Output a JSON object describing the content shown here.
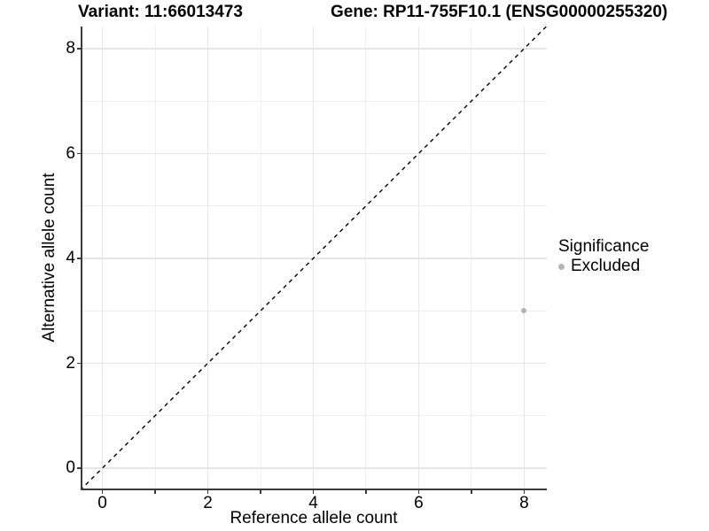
{
  "header": {
    "variant_title": "Variant: 11:66013473",
    "gene_title": "Gene: RP11-755F10.1 (ENSG00000255320)"
  },
  "chart_data": {
    "type": "scatter",
    "title_left": "Variant: 11:66013473",
    "title_right": "Gene: RP11-755F10.1 (ENSG00000255320)",
    "xlabel": "Reference allele count",
    "ylabel": "Alternative allele count",
    "xlim": [
      -0.38,
      8.43
    ],
    "ylim": [
      -0.39,
      8.42
    ],
    "x_major_ticks": [
      0,
      2,
      4,
      6,
      8
    ],
    "x_minor_ticks": [
      1,
      3,
      5,
      7
    ],
    "x_tick_labels": [
      "0",
      "2",
      "4",
      "6",
      "8"
    ],
    "y_major_ticks": [
      0,
      2,
      4,
      6,
      8
    ],
    "y_tick_labels": [
      "0",
      "2",
      "4",
      "6",
      "8"
    ],
    "grid": {
      "major": [
        0,
        2,
        4,
        6,
        8
      ],
      "minor": [
        1,
        3,
        5,
        7
      ]
    },
    "reference_line": {
      "type": "identity",
      "style": "dashed",
      "color": "#000000"
    },
    "series": [
      {
        "name": "Excluded",
        "color": "#b4b4b4",
        "points": [
          {
            "x": 8,
            "y": 3
          }
        ]
      }
    ],
    "legend": {
      "title": "Significance",
      "position": "right",
      "items": [
        {
          "label": "Excluded",
          "color": "#b4b4b4",
          "marker": "circle"
        }
      ]
    }
  },
  "colors": {
    "background": "#ffffff",
    "grid_major": "#e6e6e6",
    "grid_minor": "#efefef",
    "axis_line": "#3a3a3a",
    "point": "#b4b4b4",
    "text": "#000000"
  }
}
